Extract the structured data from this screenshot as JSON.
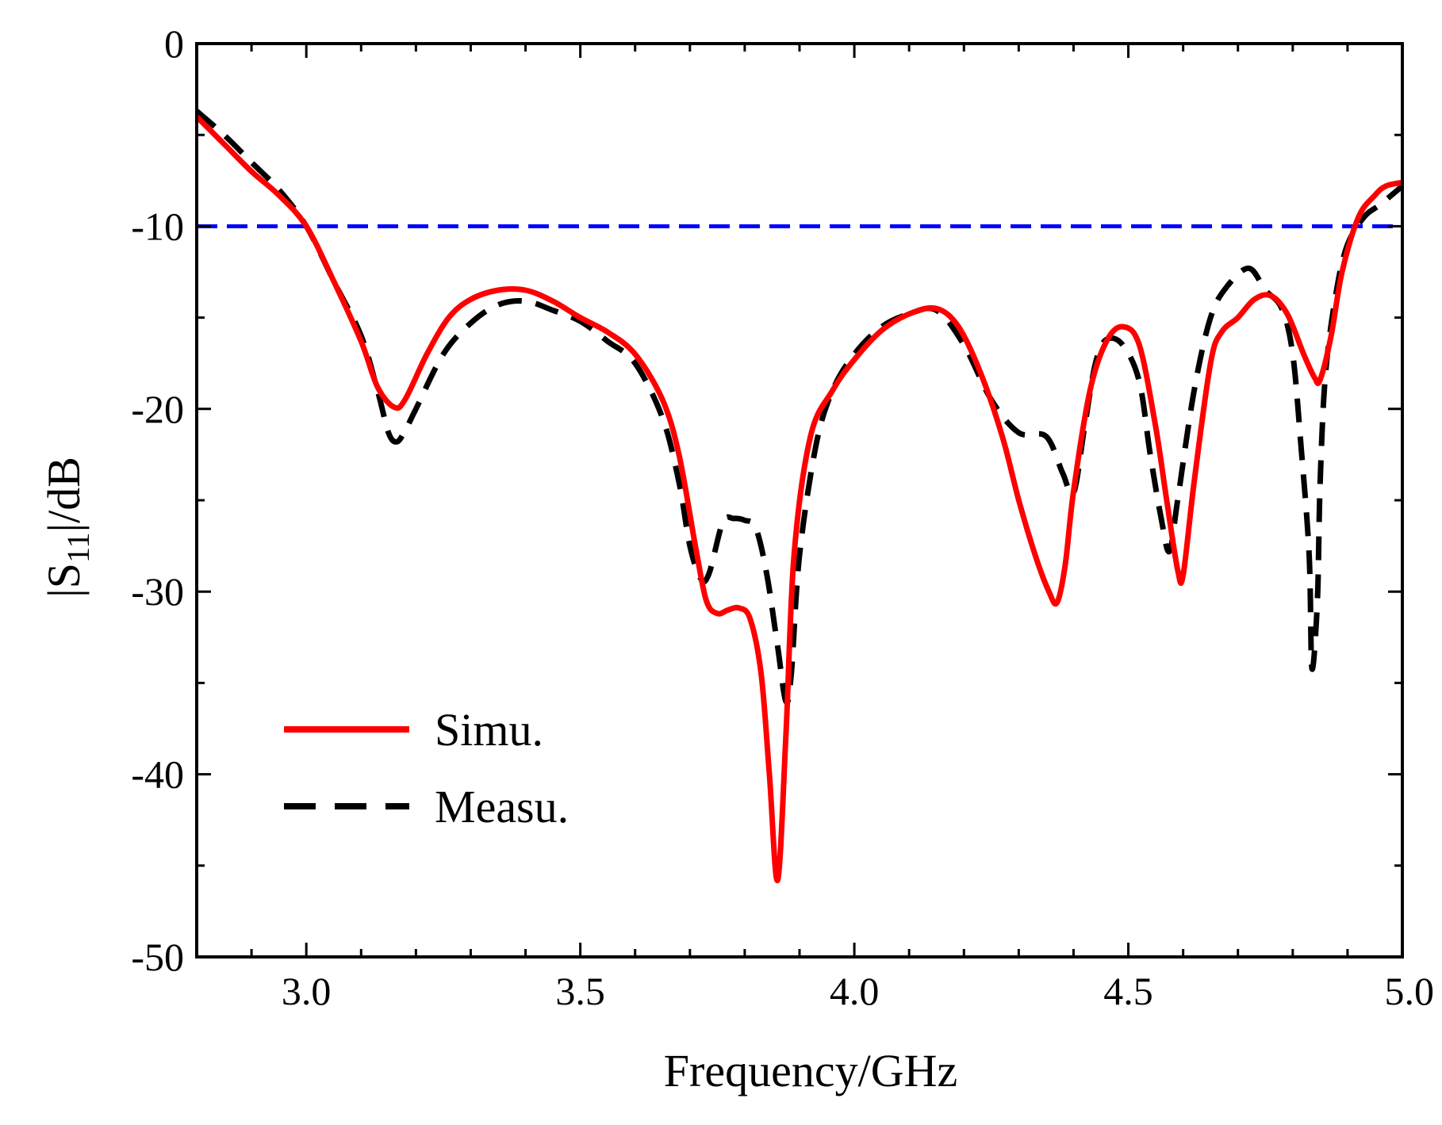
{
  "chart_data": {
    "type": "line",
    "xlabel": "Frequency/GHz",
    "ylabel_main": "|S",
    "ylabel_sub": "11",
    "ylabel_tail": "|/dB",
    "xlim": [
      2.8,
      5.0
    ],
    "ylim": [
      -50,
      0
    ],
    "x_ticks": [
      3.0,
      3.5,
      4.0,
      4.5,
      5.0
    ],
    "x_tick_labels": [
      "3.0",
      "3.5",
      "4.0",
      "4.5",
      "5.0"
    ],
    "y_ticks": [
      0,
      -10,
      -20,
      -30,
      -40,
      -50
    ],
    "y_tick_labels": [
      "0",
      "-10",
      "-20",
      "-30",
      "-40",
      "-50"
    ],
    "x_minor_step": 0.1,
    "y_minor_step": 5,
    "legend_placement": "bottom-left",
    "reference_line": {
      "y": -10,
      "color": "#0000ff",
      "style": "dashed"
    },
    "series": [
      {
        "name": "Simu.",
        "color": "#ff0000",
        "style": "solid",
        "points": [
          [
            2.8,
            -4.0
          ],
          [
            2.85,
            -5.5
          ],
          [
            2.9,
            -7.0
          ],
          [
            2.95,
            -8.3
          ],
          [
            3.0,
            -10.0
          ],
          [
            3.05,
            -13.0
          ],
          [
            3.1,
            -16.3
          ],
          [
            3.13,
            -18.8
          ],
          [
            3.16,
            -19.9
          ],
          [
            3.18,
            -19.5
          ],
          [
            3.22,
            -17.0
          ],
          [
            3.26,
            -15.0
          ],
          [
            3.3,
            -14.0
          ],
          [
            3.35,
            -13.5
          ],
          [
            3.4,
            -13.5
          ],
          [
            3.45,
            -14.1
          ],
          [
            3.5,
            -15.0
          ],
          [
            3.55,
            -15.8
          ],
          [
            3.6,
            -17.0
          ],
          [
            3.65,
            -19.5
          ],
          [
            3.68,
            -22.5
          ],
          [
            3.71,
            -27.5
          ],
          [
            3.73,
            -30.5
          ],
          [
            3.75,
            -31.2
          ],
          [
            3.77,
            -31.0
          ],
          [
            3.79,
            -30.9
          ],
          [
            3.81,
            -31.5
          ],
          [
            3.83,
            -34.5
          ],
          [
            3.845,
            -40.0
          ],
          [
            3.86,
            -45.8
          ],
          [
            3.875,
            -38.0
          ],
          [
            3.89,
            -28.0
          ],
          [
            3.92,
            -21.5
          ],
          [
            3.96,
            -19.0
          ],
          [
            4.0,
            -17.3
          ],
          [
            4.05,
            -15.7
          ],
          [
            4.1,
            -14.8
          ],
          [
            4.15,
            -14.5
          ],
          [
            4.19,
            -15.5
          ],
          [
            4.23,
            -18.0
          ],
          [
            4.27,
            -21.5
          ],
          [
            4.3,
            -25.0
          ],
          [
            4.33,
            -28.0
          ],
          [
            4.355,
            -30.0
          ],
          [
            4.37,
            -30.6
          ],
          [
            4.385,
            -28.5
          ],
          [
            4.4,
            -24.5
          ],
          [
            4.43,
            -19.0
          ],
          [
            4.46,
            -16.3
          ],
          [
            4.49,
            -15.5
          ],
          [
            4.52,
            -16.5
          ],
          [
            4.55,
            -21.0
          ],
          [
            4.57,
            -25.0
          ],
          [
            4.59,
            -28.8
          ],
          [
            4.6,
            -29.1
          ],
          [
            4.62,
            -24.0
          ],
          [
            4.65,
            -17.5
          ],
          [
            4.67,
            -15.8
          ],
          [
            4.7,
            -15.0
          ],
          [
            4.73,
            -14.0
          ],
          [
            4.76,
            -13.8
          ],
          [
            4.79,
            -14.8
          ],
          [
            4.82,
            -17.0
          ],
          [
            4.84,
            -18.3
          ],
          [
            4.85,
            -18.4
          ],
          [
            4.87,
            -16.0
          ],
          [
            4.89,
            -12.5
          ],
          [
            4.92,
            -9.5
          ],
          [
            4.95,
            -8.3
          ],
          [
            4.97,
            -7.8
          ],
          [
            5.0,
            -7.6
          ]
        ]
      },
      {
        "name": "Measu.",
        "color": "#000000",
        "style": "dashed",
        "points": [
          [
            2.8,
            -3.7
          ],
          [
            2.85,
            -5.0
          ],
          [
            2.9,
            -6.5
          ],
          [
            2.95,
            -8.0
          ],
          [
            3.0,
            -10.0
          ],
          [
            3.05,
            -13.0
          ],
          [
            3.1,
            -16.0
          ],
          [
            3.13,
            -19.0
          ],
          [
            3.15,
            -21.3
          ],
          [
            3.165,
            -21.8
          ],
          [
            3.18,
            -21.2
          ],
          [
            3.2,
            -20.0
          ],
          [
            3.25,
            -17.0
          ],
          [
            3.3,
            -15.3
          ],
          [
            3.35,
            -14.3
          ],
          [
            3.4,
            -14.1
          ],
          [
            3.45,
            -14.6
          ],
          [
            3.5,
            -15.2
          ],
          [
            3.55,
            -16.3
          ],
          [
            3.6,
            -17.5
          ],
          [
            3.65,
            -20.5
          ],
          [
            3.68,
            -24.0
          ],
          [
            3.7,
            -27.5
          ],
          [
            3.72,
            -29.3
          ],
          [
            3.735,
            -29.0
          ],
          [
            3.76,
            -26.2
          ],
          [
            3.78,
            -26.0
          ],
          [
            3.8,
            -26.1
          ],
          [
            3.82,
            -26.5
          ],
          [
            3.84,
            -29.0
          ],
          [
            3.86,
            -33.0
          ],
          [
            3.875,
            -36.0
          ],
          [
            3.885,
            -34.5
          ],
          [
            3.9,
            -28.0
          ],
          [
            3.93,
            -22.0
          ],
          [
            3.96,
            -19.0
          ],
          [
            4.0,
            -17.0
          ],
          [
            4.05,
            -15.5
          ],
          [
            4.1,
            -14.8
          ],
          [
            4.15,
            -14.6
          ],
          [
            4.2,
            -16.5
          ],
          [
            4.25,
            -19.5
          ],
          [
            4.3,
            -21.3
          ],
          [
            4.35,
            -21.5
          ],
          [
            4.38,
            -23.5
          ],
          [
            4.4,
            -24.6
          ],
          [
            4.42,
            -21.0
          ],
          [
            4.44,
            -17.5
          ],
          [
            4.46,
            -16.2
          ],
          [
            4.49,
            -16.5
          ],
          [
            4.52,
            -18.5
          ],
          [
            4.54,
            -22.5
          ],
          [
            4.56,
            -26.0
          ],
          [
            4.575,
            -27.8
          ],
          [
            4.59,
            -25.0
          ],
          [
            4.62,
            -19.0
          ],
          [
            4.65,
            -15.0
          ],
          [
            4.68,
            -13.3
          ],
          [
            4.72,
            -12.3
          ],
          [
            4.75,
            -13.5
          ],
          [
            4.78,
            -14.5
          ],
          [
            4.8,
            -17.0
          ],
          [
            4.815,
            -22.0
          ],
          [
            4.83,
            -28.0
          ],
          [
            4.835,
            -34.2
          ],
          [
            4.845,
            -30.5
          ],
          [
            4.85,
            -24.0
          ],
          [
            4.86,
            -18.0
          ],
          [
            4.88,
            -13.5
          ],
          [
            4.9,
            -11.0
          ],
          [
            4.93,
            -9.5
          ],
          [
            4.96,
            -8.8
          ],
          [
            5.0,
            -7.8
          ]
        ]
      }
    ]
  }
}
